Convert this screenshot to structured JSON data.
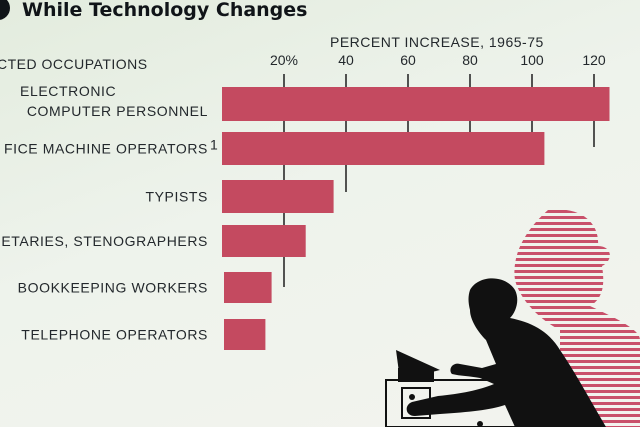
{
  "title": "While Technology Changes",
  "colors": {
    "bar": "#c44a60",
    "ink": "#23282c",
    "gridline": "#2a2a2a",
    "silhouette": "#111111",
    "stripe": "#c9506a"
  },
  "icons": [
    "woman-silhouette-icon",
    "office-machine-icon",
    "striped-silhouette-icon"
  ],
  "chart_data": {
    "type": "bar",
    "orientation": "horizontal",
    "title": "While Technology Changes",
    "category_axis_label": "CTED OCCUPATIONS",
    "value_axis_label": "PERCENT INCREASE, 1965-75",
    "ticks": [
      "20%",
      "40",
      "60",
      "80",
      "100",
      "120"
    ],
    "tick_values": [
      20,
      40,
      60,
      80,
      100,
      120
    ],
    "xlim": [
      0,
      125
    ],
    "categories": [
      [
        "ELECTRONIC",
        "COMPUTER PERSONNEL"
      ],
      [
        "FICE MACHINE OPERATORS"
      ],
      [
        "TYPISTS"
      ],
      [
        "RETARIES, STENOGRAPHERS"
      ],
      [
        "BOOKKEEPING WORKERS"
      ],
      [
        "TELEPHONE OPERATORS"
      ]
    ],
    "footnote_marker": "1",
    "values": [
      125,
      104,
      36,
      27,
      16,
      14
    ],
    "grid": true
  }
}
